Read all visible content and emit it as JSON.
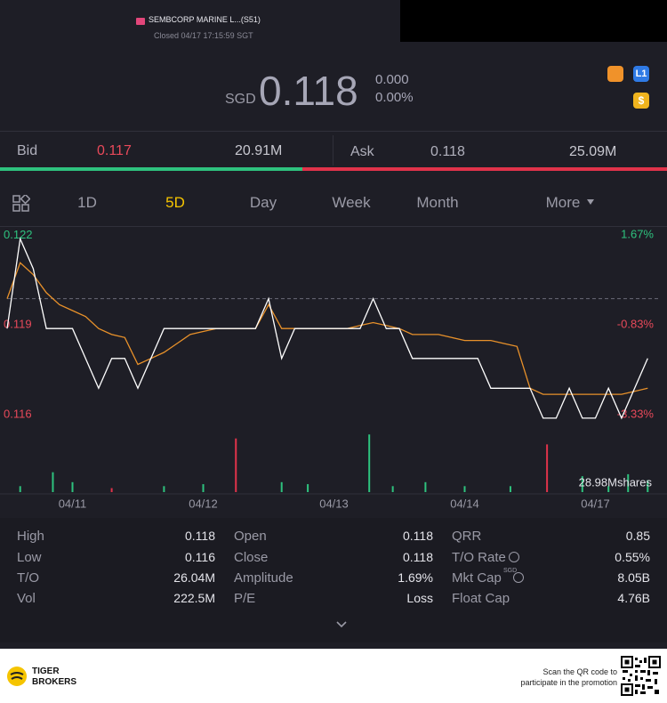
{
  "header": {
    "title": "SEMBCORP MARINE L...(S51)",
    "status": "Closed 04/17 17:15:59 SGT"
  },
  "quote": {
    "currency": "SGD",
    "price": "0.118",
    "change": "0.000",
    "change_pct": "0.00%",
    "badges": [
      "L1",
      "$"
    ]
  },
  "book": {
    "bid_label": "Bid",
    "bid": "0.117",
    "bid_size": "20.91M",
    "ask_label": "Ask",
    "ask": "0.118",
    "ask_size": "25.09M"
  },
  "tabs": [
    "1D",
    "5D",
    "Day",
    "Week",
    "Month",
    "More"
  ],
  "active_tab": 1,
  "chart_data": [
    {
      "type": "line",
      "x": [
        0,
        0.1,
        0.2,
        0.3,
        0.4,
        0.5,
        0.6,
        0.7,
        0.8,
        0.9,
        1,
        1.1,
        1.2,
        1.3,
        1.4,
        1.5,
        1.6,
        1.7,
        1.8,
        1.9,
        2,
        2.1,
        2.2,
        2.3,
        2.4,
        2.5,
        2.6,
        2.7,
        2.8,
        2.9,
        3,
        3.1,
        3.2,
        3.3,
        3.4,
        3.5,
        3.6,
        3.7,
        3.8,
        3.9,
        4,
        4.1,
        4.2,
        4.3,
        4.4,
        4.5,
        4.6,
        4.7,
        4.8,
        4.9
      ],
      "series": [
        {
          "color": "#ffffff",
          "values": [
            0.119,
            0.122,
            0.121,
            0.119,
            0.119,
            0.119,
            0.118,
            0.117,
            0.118,
            0.118,
            0.117,
            0.118,
            0.119,
            0.119,
            0.119,
            0.119,
            0.119,
            0.119,
            0.119,
            0.119,
            0.12,
            0.118,
            0.119,
            0.119,
            0.119,
            0.119,
            0.119,
            0.119,
            0.12,
            0.119,
            0.119,
            0.118,
            0.118,
            0.118,
            0.118,
            0.118,
            0.118,
            0.117,
            0.117,
            0.117,
            0.117,
            0.116,
            0.116,
            0.117,
            0.116,
            0.116,
            0.117,
            0.116,
            0.117,
            0.118
          ]
        },
        {
          "color": "#e8912a",
          "values": [
            0.12,
            0.1212,
            0.1208,
            0.1202,
            0.1198,
            0.1196,
            0.1194,
            0.119,
            0.1188,
            0.1187,
            0.1178,
            0.118,
            0.1182,
            0.1185,
            0.1188,
            0.1189,
            0.119,
            0.119,
            0.119,
            0.119,
            0.1198,
            0.119,
            0.119,
            0.119,
            0.119,
            0.119,
            0.119,
            0.1191,
            0.1192,
            0.1191,
            0.119,
            0.1188,
            0.1188,
            0.1188,
            0.1187,
            0.1186,
            0.1186,
            0.1186,
            0.1185,
            0.1184,
            0.117,
            0.1168,
            0.1168,
            0.1168,
            0.1168,
            0.1168,
            0.1168,
            0.1168,
            0.1169,
            0.117
          ]
        }
      ],
      "xlim": [
        0,
        5
      ],
      "ylim": [
        0.1157,
        0.1224
      ],
      "yticks": [
        0.122,
        0.119,
        0.116
      ],
      "y2lim": [
        -3.58,
        2.0
      ],
      "y2ticks": [
        {
          "value": 1.67,
          "label": "1.67%"
        },
        {
          "value": -0.83,
          "label": "-0.83%"
        },
        {
          "value": -3.33,
          "label": "-3.33%"
        }
      ],
      "reference_line": 0.12
    },
    {
      "type": "bar",
      "x": [
        0.1,
        0.35,
        0.5,
        0.8,
        1.2,
        1.5,
        1.75,
        2.1,
        2.3,
        2.77,
        2.95,
        3.2,
        3.5,
        3.85,
        4.13,
        4.4,
        4.6,
        4.75,
        4.9
      ],
      "values": [
        3,
        10,
        5,
        2,
        3,
        4,
        27,
        5,
        4,
        29,
        3,
        5,
        3,
        3,
        24,
        8,
        3,
        9,
        6
      ],
      "colors": [
        "#2ec27e",
        "#2ec27e",
        "#2ec27e",
        "#e0334a",
        "#2ec27e",
        "#2ec27e",
        "#e0334a",
        "#2ec27e",
        "#2ec27e",
        "#2ec27e",
        "#2ec27e",
        "#2ec27e",
        "#2ec27e",
        "#2ec27e",
        "#e0334a",
        "#2ec27e",
        "#2ec27e",
        "#2ec27e",
        "#2ec27e"
      ],
      "xlim": [
        0,
        5
      ],
      "ylim": [
        0,
        30
      ],
      "xticks": [
        {
          "value": 0.5,
          "label": "04/11"
        },
        {
          "value": 1.5,
          "label": "04/12"
        },
        {
          "value": 2.5,
          "label": "04/13"
        },
        {
          "value": 3.5,
          "label": "04/14"
        },
        {
          "value": 4.5,
          "label": "04/17"
        }
      ],
      "label": "28.98Mshares"
    }
  ],
  "stats": [
    [
      [
        "High",
        "0.118"
      ],
      [
        "Open",
        "0.118"
      ],
      [
        "QRR",
        "0.85"
      ]
    ],
    [
      [
        "Low",
        "0.116"
      ],
      [
        "Close",
        "0.118"
      ],
      [
        "T/O Rate",
        "0.55%"
      ]
    ],
    [
      [
        "T/O",
        "26.04M"
      ],
      [
        "Amplitude",
        "1.69%"
      ],
      [
        "Mkt Cap",
        "8.05B"
      ]
    ],
    [
      [
        "Vol",
        "222.5M"
      ],
      [
        "P/E",
        "Loss"
      ],
      [
        "Float Cap",
        "4.76B"
      ]
    ]
  ],
  "mkt_cap_unit": "SGD",
  "footer": {
    "brand": [
      "TIGER",
      "BROKERS"
    ],
    "promo": [
      "Scan the QR code to",
      "participate in the promotion"
    ]
  }
}
